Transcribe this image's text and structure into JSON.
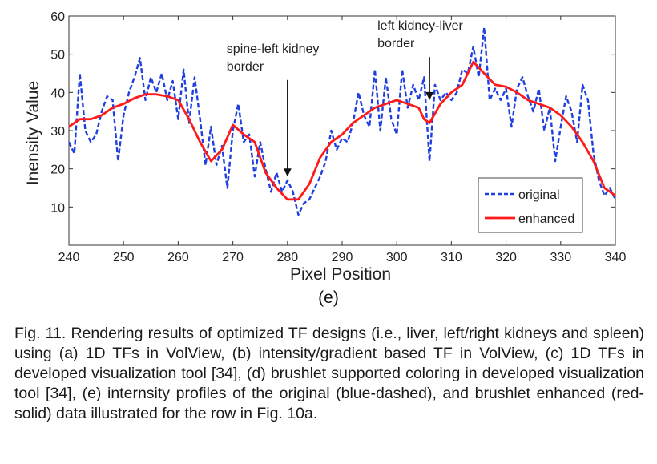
{
  "chart_data": {
    "type": "line",
    "xlabel": "Pixel Position",
    "ylabel": "Inensity Value",
    "xlim": [
      240,
      340
    ],
    "ylim": [
      0,
      60
    ],
    "x_ticks": [
      240,
      250,
      260,
      270,
      280,
      290,
      300,
      310,
      320,
      330,
      340
    ],
    "y_ticks": [
      10,
      20,
      30,
      40,
      50,
      60
    ],
    "grid": false,
    "legend_position": "bottom-right",
    "annotations": [
      {
        "lines": [
          "spine-left kidney",
          "border"
        ],
        "x": 280,
        "arrow_from_y": 42,
        "arrow_to_y": 18
      },
      {
        "lines": [
          "left kidney-liver",
          "border"
        ],
        "x": 306,
        "arrow_from_y": 48,
        "arrow_to_y": 38
      }
    ],
    "series": [
      {
        "name": "original",
        "color": "#1f3fe0",
        "style": "dashed",
        "x": [
          240,
          241,
          242,
          243,
          244,
          245,
          246,
          247,
          248,
          249,
          250,
          251,
          252,
          253,
          254,
          255,
          256,
          257,
          258,
          259,
          260,
          261,
          262,
          263,
          264,
          265,
          266,
          267,
          268,
          269,
          270,
          271,
          272,
          273,
          274,
          275,
          276,
          277,
          278,
          279,
          280,
          281,
          282,
          283,
          284,
          285,
          286,
          287,
          288,
          289,
          290,
          291,
          292,
          293,
          294,
          295,
          296,
          297,
          298,
          299,
          300,
          301,
          302,
          303,
          304,
          305,
          306,
          307,
          308,
          309,
          310,
          311,
          312,
          313,
          314,
          315,
          316,
          317,
          318,
          319,
          320,
          321,
          322,
          323,
          324,
          325,
          326,
          327,
          328,
          329,
          330,
          331,
          332,
          333,
          334,
          335,
          336,
          337,
          338,
          339,
          340
        ],
        "y": [
          27,
          24,
          45,
          30,
          27,
          29,
          35,
          39,
          38,
          22,
          34,
          40,
          44,
          49,
          38,
          44,
          40,
          45,
          38,
          43,
          33,
          46,
          32,
          44,
          33,
          21,
          31,
          21,
          26,
          15,
          30,
          37,
          27,
          29,
          18,
          27,
          20,
          14,
          19,
          14,
          17,
          14,
          8,
          11,
          12,
          15,
          18,
          22,
          30,
          25,
          28,
          27,
          32,
          40,
          34,
          31,
          46,
          30,
          44,
          33,
          29,
          46,
          36,
          42,
          38,
          44,
          22,
          42,
          38,
          40,
          38,
          40,
          46,
          45,
          52,
          44,
          57,
          38,
          41,
          38,
          41,
          31,
          41,
          44,
          39,
          35,
          41,
          30,
          36,
          22,
          31,
          39,
          35,
          27,
          42,
          38,
          24,
          17,
          13,
          15,
          12
        ],
        "values_note": ""
      },
      {
        "name": "enhanced",
        "color": "#ff1a1a",
        "style": "solid",
        "x": [
          240,
          242,
          244,
          246,
          248,
          250,
          252,
          254,
          256,
          258,
          260,
          262,
          264,
          266,
          268,
          270,
          272,
          274,
          276,
          278,
          280,
          282,
          284,
          286,
          288,
          290,
          292,
          294,
          296,
          298,
          300,
          302,
          304,
          305,
          306,
          308,
          310,
          312,
          314,
          316,
          318,
          320,
          322,
          324,
          326,
          328,
          330,
          332,
          334,
          336,
          338,
          340
        ],
        "y": [
          31,
          33,
          33,
          34,
          36,
          37,
          38.5,
          39.5,
          39.5,
          39,
          38,
          33,
          27,
          22,
          25,
          31.5,
          29,
          27,
          19,
          15,
          12,
          12,
          16,
          23,
          27,
          29,
          32,
          34,
          36,
          37,
          38,
          37,
          36,
          33,
          32,
          37,
          40,
          42,
          48,
          45,
          42,
          41.5,
          40,
          38,
          37,
          36,
          34,
          31,
          27,
          22,
          15,
          13
        ]
      }
    ]
  },
  "panel_label": "(e)",
  "caption": "Fig. 11. Rendering results of optimized TF designs (i.e., liver, left/right kidneys and spleen) using (a) 1D TFs in VolView, (b) intensity/gradient based TF in VolView, (c) 1D TFs in developed visualization tool [34], (d) brushlet supported coloring in developed visualization tool [34], (e) internsity profiles of the original (blue-dashed), and brushlet enhanced (red-solid) data illustrated for the row in Fig. 10a."
}
